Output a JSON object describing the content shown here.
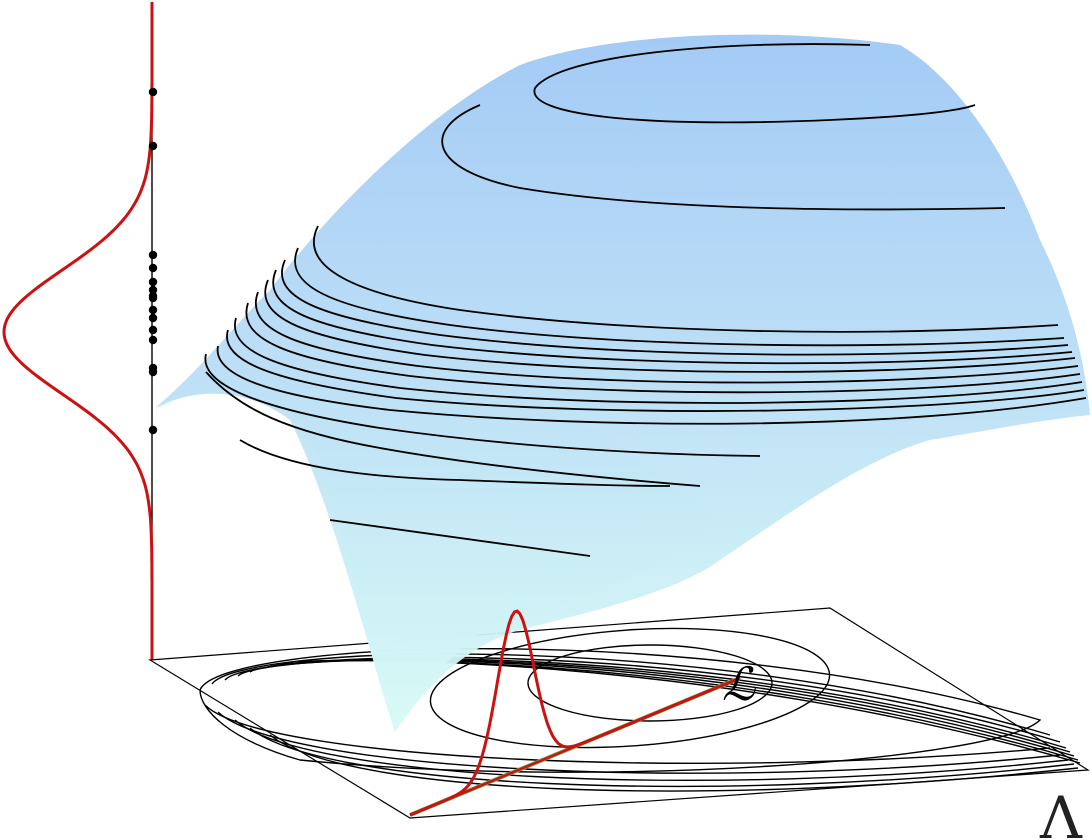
{
  "figure": {
    "label_curve": "ℒ",
    "label_space": "Λ"
  },
  "styles": {
    "surface_top_color": "#9ec8f4",
    "surface_bottom_color": "#d8fbf6",
    "floor_shade_color": "#d6f8f4",
    "curve_color": "#cc1111",
    "line_color": "#6fa84f",
    "contour_color": "#000000",
    "point_color": "#000000"
  },
  "marginal": {
    "sample_count": 15
  }
}
